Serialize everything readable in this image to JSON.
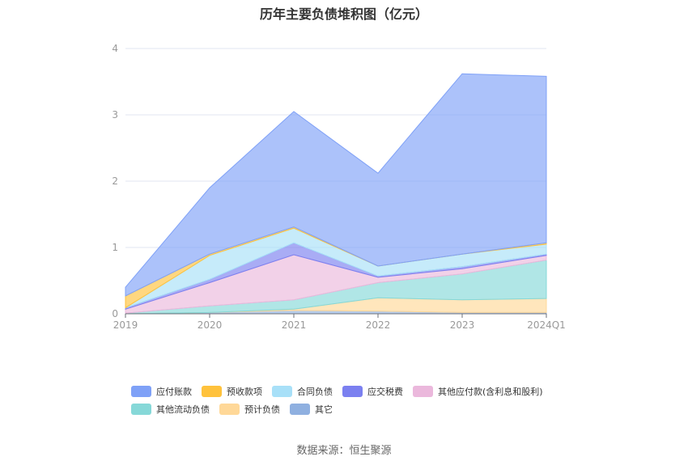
{
  "title": "历年主要负债堆积图（亿元）",
  "source": "数据来源：恒生聚源",
  "chart_data": {
    "type": "area",
    "stacked": true,
    "categories": [
      "2019",
      "2020",
      "2021",
      "2022",
      "2023",
      "2024Q1"
    ],
    "ylim": [
      0,
      4
    ],
    "yticks": [
      "0",
      "1",
      "2",
      "3",
      "4"
    ],
    "grid": true,
    "legend_position": "bottom",
    "series": [
      {
        "name": "其它",
        "color": "#8fb0e0",
        "values": [
          0.0,
          0.02,
          0.05,
          0.04,
          0.02,
          0.02
        ]
      },
      {
        "name": "预计负债",
        "color": "#ffd898",
        "values": [
          0.0,
          0.0,
          0.02,
          0.2,
          0.19,
          0.21
        ]
      },
      {
        "name": "其他流动负债",
        "color": "#86d8d8",
        "values": [
          0.01,
          0.1,
          0.14,
          0.23,
          0.39,
          0.58
        ]
      },
      {
        "name": "其他应付款(含利息和股利)",
        "color": "#ebb8dc",
        "values": [
          0.06,
          0.35,
          0.68,
          0.08,
          0.08,
          0.07
        ]
      },
      {
        "name": "应交税费",
        "color": "#7b80f0",
        "values": [
          0.02,
          0.05,
          0.18,
          0.02,
          0.03,
          0.02
        ]
      },
      {
        "name": "合同负债",
        "color": "#a8e0f8",
        "values": [
          0.0,
          0.36,
          0.22,
          0.15,
          0.19,
          0.15
        ]
      },
      {
        "name": "预收款项",
        "color": "#ffc23c",
        "values": [
          0.18,
          0.02,
          0.02,
          0.0,
          0.0,
          0.02
        ]
      },
      {
        "name": "应付账款",
        "color": "#7fa1f7",
        "values": [
          0.13,
          1.0,
          1.74,
          1.4,
          2.72,
          2.51
        ]
      }
    ],
    "legend": [
      [
        "应付账款",
        "预收款项",
        "合同负债",
        "应交税费",
        "其他应付款(含利息和股利)"
      ],
      [
        "其他流动负债",
        "预计负债",
        "其它"
      ]
    ]
  }
}
